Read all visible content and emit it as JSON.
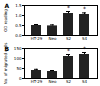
{
  "chart_data": [
    {
      "type": "bar",
      "title": "A",
      "y_label": "OD reading",
      "categories": [
        "HT-29",
        "Neo",
        "S2",
        "S4"
      ],
      "values": [
        0.5,
        0.48,
        1.1,
        1.05
      ],
      "errors": [
        0.05,
        0.05,
        0.1,
        0.08
      ],
      "annotations": [
        null,
        null,
        "*",
        "*"
      ],
      "color": "#222222",
      "ylim": [
        0,
        1.5
      ],
      "yticks": [
        {
          "value": 0,
          "label": "0.0"
        },
        {
          "value": 0.5,
          "label": "0.5"
        },
        {
          "value": 1,
          "label": "1.0"
        },
        {
          "value": 1.5,
          "label": "1.5"
        }
      ]
    },
    {
      "type": "bar",
      "title": "B",
      "y_label": "No. of migrated cells",
      "categories": [
        "HT-29",
        "Neo",
        "S2",
        "S4"
      ],
      "values": [
        40,
        35,
        110,
        120
      ],
      "errors": [
        6,
        5,
        10,
        10
      ],
      "annotations": [
        null,
        null,
        "*",
        "*"
      ],
      "color": "#222222",
      "ylim": [
        0,
        150
      ],
      "yticks": [
        0,
        50,
        100,
        150
      ]
    }
  ]
}
